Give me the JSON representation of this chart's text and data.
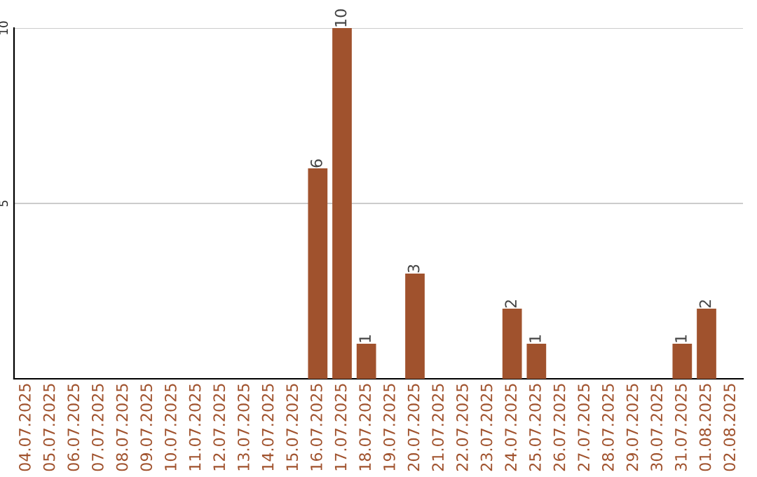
{
  "chart_data": {
    "type": "bar",
    "categories": [
      "04.07.2025",
      "05.07.2025",
      "06.07.2025",
      "07.07.2025",
      "08.07.2025",
      "09.07.2025",
      "10.07.2025",
      "11.07.2025",
      "12.07.2025",
      "13.07.2025",
      "14.07.2025",
      "15.07.2025",
      "16.07.2025",
      "17.07.2025",
      "18.07.2025",
      "19.07.2025",
      "20.07.2025",
      "21.07.2025",
      "22.07.2025",
      "23.07.2025",
      "24.07.2025",
      "25.07.2025",
      "26.07.2025",
      "27.07.2025",
      "28.07.2025",
      "29.07.2025",
      "30.07.2025",
      "31.07.2025",
      "01.08.2025",
      "02.08.2025"
    ],
    "values": [
      null,
      null,
      null,
      null,
      null,
      null,
      null,
      null,
      null,
      null,
      null,
      null,
      6,
      10,
      1,
      null,
      3,
      null,
      null,
      null,
      2,
      1,
      null,
      null,
      null,
      null,
      null,
      1,
      2,
      null
    ],
    "value_labels": [
      null,
      null,
      null,
      null,
      null,
      null,
      null,
      null,
      null,
      null,
      null,
      null,
      "6",
      "10",
      "1",
      null,
      "3",
      null,
      null,
      null,
      "2",
      "1",
      null,
      null,
      null,
      null,
      null,
      "1",
      "2",
      null
    ],
    "color": "#a0522d",
    "ylim": [
      0,
      10
    ],
    "yticks": [
      5,
      10
    ],
    "grid": "y",
    "legend": false
  }
}
